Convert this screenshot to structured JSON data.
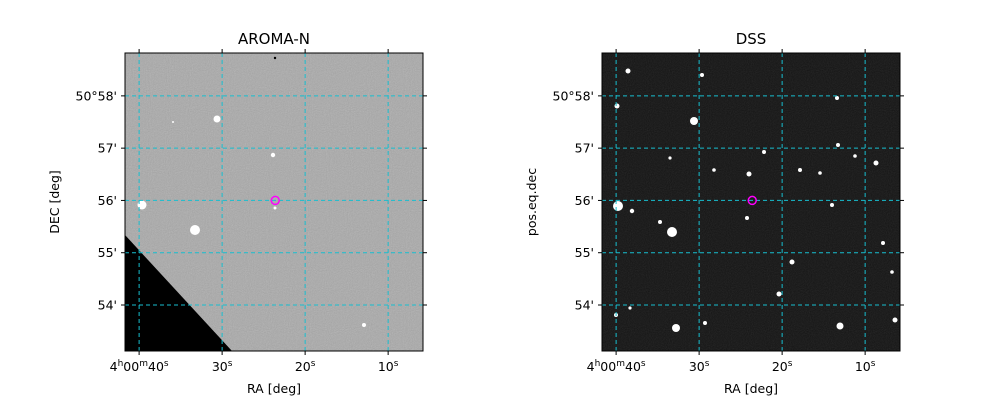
{
  "chart_data": [
    {
      "type": "image",
      "title": "AROMA-N",
      "xlabel": "RA [deg]",
      "ylabel": "DEC [deg]",
      "xlim": [
        41.7,
        5.8
      ],
      "ylim": [
        53.12,
        58.82
      ],
      "xticks": [
        {
          "value": 40,
          "label": "4h00m40s"
        },
        {
          "value": 30,
          "label": "30s"
        },
        {
          "value": 20,
          "label": "20s"
        },
        {
          "value": 10,
          "label": "10s"
        }
      ],
      "yticks": [
        {
          "value": 54,
          "label": "54'"
        },
        {
          "value": 55,
          "label": "55'"
        },
        {
          "value": 56,
          "label": "56'"
        },
        {
          "value": 57,
          "label": "57'"
        },
        {
          "value": 58,
          "label": "50°58'"
        }
      ],
      "grid": true,
      "grid_color": "#17becf",
      "marker": {
        "x": 23.6,
        "y": 56.0,
        "color": "#ff00ff"
      }
    },
    {
      "type": "image",
      "title": "DSS",
      "xlabel": "RA [deg]",
      "ylabel": "pos.eq.dec",
      "xlim": [
        41.7,
        5.8
      ],
      "ylim": [
        53.12,
        58.82
      ],
      "xticks": [
        {
          "value": 40,
          "label": "4h00m40s"
        },
        {
          "value": 30,
          "label": "30s"
        },
        {
          "value": 20,
          "label": "20s"
        },
        {
          "value": 10,
          "label": "10s"
        }
      ],
      "yticks": [
        {
          "value": 54,
          "label": "54'"
        },
        {
          "value": 55,
          "label": "55'"
        },
        {
          "value": 56,
          "label": "56'"
        },
        {
          "value": 57,
          "label": "57'"
        },
        {
          "value": 58,
          "label": "50°58'"
        }
      ],
      "grid": true,
      "grid_color": "#17becf",
      "marker": {
        "x": 23.6,
        "y": 56.0,
        "color": "#ff00ff"
      }
    }
  ]
}
